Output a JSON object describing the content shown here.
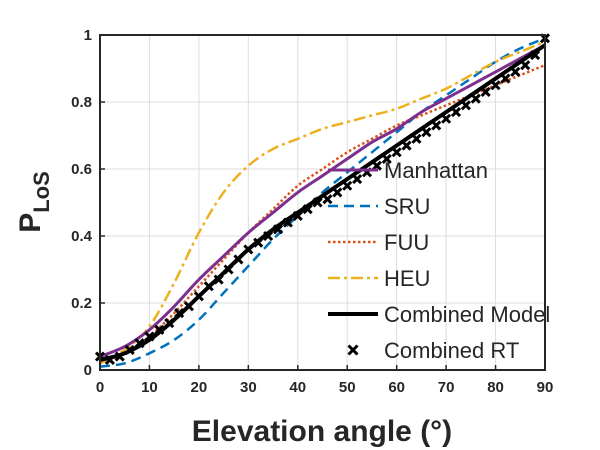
{
  "chart_data": {
    "type": "line",
    "title": "",
    "xlabel": "Elevation angle (°)",
    "ylabel_main": "P",
    "ylabel_sub": "LoS",
    "xlim": [
      0,
      90
    ],
    "ylim": [
      0,
      1
    ],
    "xticks": [
      0,
      10,
      20,
      30,
      40,
      50,
      60,
      70,
      80,
      90
    ],
    "yticks": [
      0,
      0.2,
      0.4,
      0.6,
      0.8,
      1
    ],
    "xtick_labels": [
      "0",
      "10",
      "20",
      "30",
      "40",
      "50",
      "60",
      "70",
      "80",
      "90"
    ],
    "ytick_labels": [
      "0",
      "0.2",
      "0.4",
      "0.6",
      "0.8",
      "1"
    ],
    "grid": true,
    "legend_position": "bottom-right",
    "series": [
      {
        "name": "Manhattan",
        "style": "solid",
        "color": "#7E2F8E",
        "x": [
          0,
          5,
          10,
          15,
          20,
          25,
          30,
          35,
          40,
          45,
          50,
          55,
          60,
          65,
          70,
          75,
          80,
          85,
          90
        ],
        "y": [
          0.04,
          0.07,
          0.12,
          0.19,
          0.27,
          0.34,
          0.41,
          0.47,
          0.53,
          0.58,
          0.63,
          0.68,
          0.72,
          0.77,
          0.81,
          0.85,
          0.89,
          0.93,
          0.97
        ]
      },
      {
        "name": "SRU",
        "style": "dashed",
        "color": "#0072BD",
        "x": [
          0,
          5,
          10,
          15,
          20,
          25,
          30,
          35,
          40,
          45,
          50,
          55,
          60,
          65,
          70,
          75,
          80,
          85,
          90
        ],
        "y": [
          0.01,
          0.02,
          0.05,
          0.09,
          0.15,
          0.23,
          0.31,
          0.39,
          0.46,
          0.53,
          0.59,
          0.65,
          0.71,
          0.77,
          0.82,
          0.87,
          0.92,
          0.96,
          0.99
        ]
      },
      {
        "name": "FUU",
        "style": "dotted",
        "color": "#D95319",
        "x": [
          0,
          5,
          10,
          15,
          20,
          25,
          30,
          35,
          40,
          45,
          50,
          55,
          60,
          65,
          70,
          75,
          80,
          85,
          90
        ],
        "y": [
          0.02,
          0.05,
          0.1,
          0.17,
          0.25,
          0.33,
          0.41,
          0.48,
          0.55,
          0.6,
          0.65,
          0.69,
          0.73,
          0.76,
          0.79,
          0.82,
          0.85,
          0.88,
          0.91
        ]
      },
      {
        "name": "HEU",
        "style": "dashdot",
        "color": "#EDB120",
        "x": [
          0,
          5,
          10,
          15,
          20,
          25,
          30,
          35,
          40,
          45,
          50,
          55,
          60,
          65,
          70,
          75,
          80,
          85,
          90
        ],
        "y": [
          0.02,
          0.06,
          0.13,
          0.26,
          0.41,
          0.53,
          0.61,
          0.66,
          0.69,
          0.72,
          0.74,
          0.76,
          0.78,
          0.81,
          0.84,
          0.88,
          0.92,
          0.95,
          0.98
        ]
      },
      {
        "name": "Combined Model",
        "style": "solid-thick",
        "color": "#000000",
        "x": [
          0,
          5,
          10,
          15,
          20,
          25,
          30,
          35,
          40,
          45,
          50,
          55,
          60,
          65,
          70,
          75,
          80,
          85,
          90
        ],
        "y": [
          0.03,
          0.05,
          0.09,
          0.15,
          0.22,
          0.29,
          0.36,
          0.42,
          0.47,
          0.52,
          0.57,
          0.62,
          0.67,
          0.72,
          0.77,
          0.82,
          0.87,
          0.92,
          0.97
        ]
      },
      {
        "name": "Combined RT",
        "style": "marker-x",
        "color": "#000000",
        "x": [
          0,
          2,
          4,
          6,
          8,
          10,
          12,
          14,
          16,
          18,
          20,
          22,
          24,
          26,
          28,
          30,
          32,
          34,
          36,
          38,
          40,
          42,
          44,
          46,
          48,
          50,
          52,
          54,
          56,
          58,
          60,
          62,
          64,
          66,
          68,
          70,
          72,
          74,
          76,
          78,
          80,
          82,
          84,
          86,
          88,
          90
        ],
        "y": [
          0.04,
          0.03,
          0.04,
          0.06,
          0.08,
          0.1,
          0.12,
          0.14,
          0.17,
          0.19,
          0.22,
          0.25,
          0.27,
          0.3,
          0.33,
          0.36,
          0.38,
          0.4,
          0.42,
          0.44,
          0.46,
          0.48,
          0.5,
          0.51,
          0.53,
          0.55,
          0.57,
          0.59,
          0.61,
          0.63,
          0.65,
          0.67,
          0.69,
          0.71,
          0.73,
          0.75,
          0.77,
          0.79,
          0.81,
          0.83,
          0.85,
          0.87,
          0.89,
          0.91,
          0.94,
          0.99
        ]
      }
    ]
  }
}
